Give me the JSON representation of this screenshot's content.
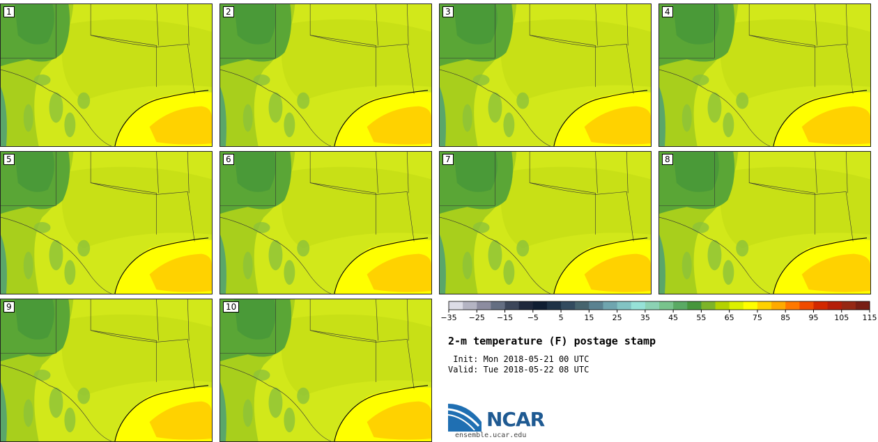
{
  "panels": [
    {
      "label": "1"
    },
    {
      "label": "2"
    },
    {
      "label": "3"
    },
    {
      "label": "4"
    },
    {
      "label": "5"
    },
    {
      "label": "6"
    },
    {
      "label": "7"
    },
    {
      "label": "8"
    },
    {
      "label": "9"
    },
    {
      "label": "10"
    }
  ],
  "colorbar": {
    "ticks": [
      "-35",
      "-25",
      "-15",
      "-5",
      "5",
      "15",
      "25",
      "35",
      "45",
      "55",
      "65",
      "75",
      "85",
      "95",
      "105",
      "115"
    ],
    "colors": [
      "#dcdce6",
      "#b4b4c3",
      "#8c8ca0",
      "#646e82",
      "#3c465a",
      "#1e283c",
      "#0f1e32",
      "#1e3246",
      "#324b5f",
      "#46646e",
      "#5a8291",
      "#6fa5af",
      "#82c3c3",
      "#96e1d7",
      "#8cd2b4",
      "#78c38c",
      "#5aaa64",
      "#46963c",
      "#7db428",
      "#b4d200",
      "#dcf000",
      "#ffff00",
      "#ffd200",
      "#ffaa00",
      "#ff7800",
      "#f04b00",
      "#d22800",
      "#b41e0a",
      "#962814",
      "#781e14"
    ]
  },
  "title": "2-m temperature (F) postage stamp",
  "init_line": " Init: Mon 2018-05-21 00 UTC",
  "valid_line": "Valid: Tue 2018-05-22 08 UTC",
  "logo": {
    "text": "NCAR",
    "url": "ensemble.ucar.edu"
  }
}
